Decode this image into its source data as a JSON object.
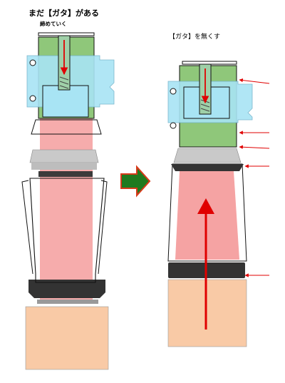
{
  "labels": {
    "left_title": "まだ【ガタ】がある",
    "left_subtitle": "締めていく",
    "right_title": "【ガタ】を無くす"
  },
  "colors": {
    "green_plate": "#8fc77a",
    "blue_block": "#a8e4f4",
    "pink_body": "#f5a3a3",
    "peach_base": "#f9caa6",
    "dark_gray": "#333333",
    "light_gray": "#b3b3b3",
    "arrow_red": "#e00000",
    "arrow_green": "#1f7a1f",
    "arrow_border": "#d83a1a",
    "outline": "#111111"
  }
}
